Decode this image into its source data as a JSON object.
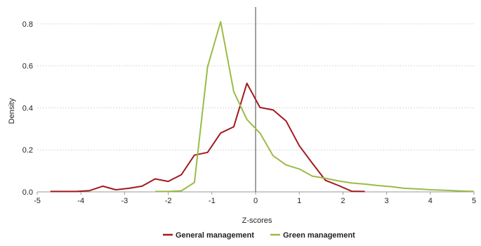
{
  "chart_data": {
    "type": "line",
    "title": "",
    "xlabel": "Z-scores",
    "ylabel": "Density",
    "xlim": [
      -5,
      5
    ],
    "ylim": [
      0,
      0.88
    ],
    "x_ticks": [
      -5,
      -4,
      -3,
      -2,
      -1,
      0,
      1,
      2,
      3,
      4,
      5
    ],
    "x_tick_labels": [
      "-5",
      "-4",
      "-3",
      "-2",
      "-1",
      "0",
      "1",
      "2",
      "3",
      "4",
      "5"
    ],
    "y_ticks": [
      0,
      0.2,
      0.4,
      0.6,
      0.8
    ],
    "y_tick_labels": [
      "0.0",
      "0.2",
      "0.4",
      "0.6",
      "0.8"
    ],
    "grid": "horizontal",
    "vertical_reference_line_x": 0,
    "legend_position": "bottom",
    "series": [
      {
        "name": "General management",
        "color": "#a3191f",
        "x": [
          -4.7,
          -4.4,
          -4.1,
          -3.8,
          -3.5,
          -3.2,
          -2.9,
          -2.6,
          -2.3,
          -2.0,
          -1.7,
          -1.4,
          -1.1,
          -0.8,
          -0.5,
          -0.2,
          0.1,
          0.4,
          0.7,
          1.0,
          1.3,
          1.6,
          1.9,
          2.2,
          2.5
        ],
        "y": [
          0.002,
          0.002,
          0.002,
          0.006,
          0.027,
          0.01,
          0.017,
          0.027,
          0.062,
          0.05,
          0.082,
          0.175,
          0.188,
          0.28,
          0.31,
          0.517,
          0.402,
          0.39,
          0.337,
          0.22,
          0.136,
          0.055,
          0.03,
          0.003,
          0.002
        ]
      },
      {
        "name": "Green management",
        "color": "#9bbb47",
        "x": [
          -2.3,
          -2.0,
          -1.7,
          -1.4,
          -1.1,
          -0.8,
          -0.5,
          -0.2,
          0.1,
          0.4,
          0.7,
          1.0,
          1.3,
          1.6,
          1.9,
          2.2,
          2.5,
          2.8,
          3.1,
          3.4,
          3.7,
          4.0,
          4.3,
          4.6,
          4.9,
          5.2
        ],
        "y": [
          0.002,
          0.002,
          0.005,
          0.045,
          0.595,
          0.81,
          0.477,
          0.345,
          0.28,
          0.172,
          0.128,
          0.109,
          0.075,
          0.065,
          0.052,
          0.042,
          0.037,
          0.03,
          0.025,
          0.017,
          0.014,
          0.01,
          0.008,
          0.005,
          0.003,
          0.002
        ]
      }
    ]
  }
}
